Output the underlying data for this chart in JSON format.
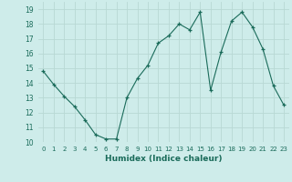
{
  "x": [
    0,
    1,
    2,
    3,
    4,
    5,
    6,
    7,
    8,
    9,
    10,
    11,
    12,
    13,
    14,
    15,
    16,
    17,
    18,
    19,
    20,
    21,
    22,
    23
  ],
  "y": [
    14.8,
    13.9,
    13.1,
    12.4,
    11.5,
    10.5,
    10.2,
    10.2,
    13.0,
    14.3,
    15.2,
    16.7,
    17.2,
    18.0,
    17.6,
    18.8,
    13.5,
    16.1,
    18.2,
    18.8,
    17.8,
    16.3,
    13.8,
    12.5
  ],
  "xlabel": "Humidex (Indice chaleur)",
  "ylim": [
    10,
    19.5
  ],
  "xlim": [
    -0.5,
    23.5
  ],
  "yticks": [
    10,
    11,
    12,
    13,
    14,
    15,
    16,
    17,
    18,
    19
  ],
  "xticks": [
    0,
    1,
    2,
    3,
    4,
    5,
    6,
    7,
    8,
    9,
    10,
    11,
    12,
    13,
    14,
    15,
    16,
    17,
    18,
    19,
    20,
    21,
    22,
    23
  ],
  "xtick_labels": [
    "0",
    "1",
    "2",
    "3",
    "4",
    "5",
    "6",
    "7",
    "8",
    "9",
    "10",
    "11",
    "12",
    "13",
    "14",
    "15",
    "16",
    "17",
    "18",
    "19",
    "20",
    "21",
    "22",
    "23"
  ],
  "line_color": "#1a6b5a",
  "marker": "+",
  "bg_color": "#ceecea",
  "grid_color": "#b8d8d4",
  "title": ""
}
